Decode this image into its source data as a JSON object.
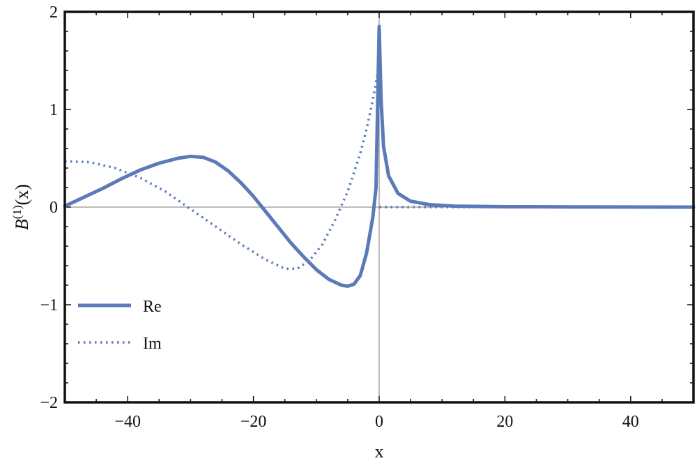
{
  "chart_data": {
    "type": "line",
    "title": "",
    "xlabel": "x",
    "ylabel": "B(1)(x)",
    "ylabel_main": "B",
    "ylabel_superscript": "(1)",
    "ylabel_suffix": "(x)",
    "xlim": [
      -50,
      50
    ],
    "ylim": [
      -2,
      2
    ],
    "x_ticks": [
      -40,
      -20,
      0,
      20,
      40
    ],
    "x_tick_labels": [
      "−40",
      "−20",
      "0",
      "20",
      "40"
    ],
    "y_ticks": [
      -2,
      -1,
      0,
      1,
      2
    ],
    "y_tick_labels": [
      "−2",
      "−1",
      "0",
      "1",
      "2"
    ],
    "grid": false,
    "legend_position": "bottom-left",
    "series_color": "#5a7ab8",
    "series": [
      {
        "name": "Re",
        "style": "solid",
        "points": [
          [
            -50,
            0.01
          ],
          [
            -47,
            0.1
          ],
          [
            -44,
            0.19
          ],
          [
            -41,
            0.29
          ],
          [
            -38,
            0.38
          ],
          [
            -35,
            0.45
          ],
          [
            -32,
            0.5
          ],
          [
            -30,
            0.52
          ],
          [
            -28,
            0.51
          ],
          [
            -26,
            0.46
          ],
          [
            -24,
            0.37
          ],
          [
            -22,
            0.25
          ],
          [
            -20,
            0.11
          ],
          [
            -18,
            -0.05
          ],
          [
            -16,
            -0.21
          ],
          [
            -14,
            -0.37
          ],
          [
            -12,
            -0.51
          ],
          [
            -10,
            -0.64
          ],
          [
            -8,
            -0.74
          ],
          [
            -6,
            -0.8
          ],
          [
            -5,
            -0.81
          ],
          [
            -4,
            -0.79
          ],
          [
            -3,
            -0.7
          ],
          [
            -2,
            -0.47
          ],
          [
            -1,
            -0.1
          ],
          [
            -0.5,
            0.2
          ],
          [
            0,
            1.85
          ],
          [
            0.3,
            1.1
          ],
          [
            0.7,
            0.62
          ],
          [
            1.5,
            0.32
          ],
          [
            3,
            0.14
          ],
          [
            5,
            0.06
          ],
          [
            8,
            0.025
          ],
          [
            12,
            0.01
          ],
          [
            20,
            0.004
          ],
          [
            30,
            0.002
          ],
          [
            50,
            0.0
          ]
        ]
      },
      {
        "name": "Im",
        "style": "dotted",
        "points": [
          [
            -50,
            0.47
          ],
          [
            -46,
            0.46
          ],
          [
            -42,
            0.4
          ],
          [
            -38,
            0.3
          ],
          [
            -34,
            0.16
          ],
          [
            -30,
            -0.02
          ],
          [
            -26,
            -0.2
          ],
          [
            -22,
            -0.38
          ],
          [
            -18,
            -0.54
          ],
          [
            -15,
            -0.63
          ],
          [
            -13,
            -0.63
          ],
          [
            -11,
            -0.54
          ],
          [
            -9,
            -0.38
          ],
          [
            -7,
            -0.13
          ],
          [
            -5,
            0.16
          ],
          [
            -3,
            0.55
          ],
          [
            -2,
            0.8
          ],
          [
            -1,
            1.1
          ],
          [
            -0.3,
            1.35
          ],
          [
            0,
            1.5
          ],
          [
            0.05,
            0.0
          ],
          [
            10,
            0.0
          ],
          [
            50,
            0.0
          ]
        ]
      }
    ]
  }
}
